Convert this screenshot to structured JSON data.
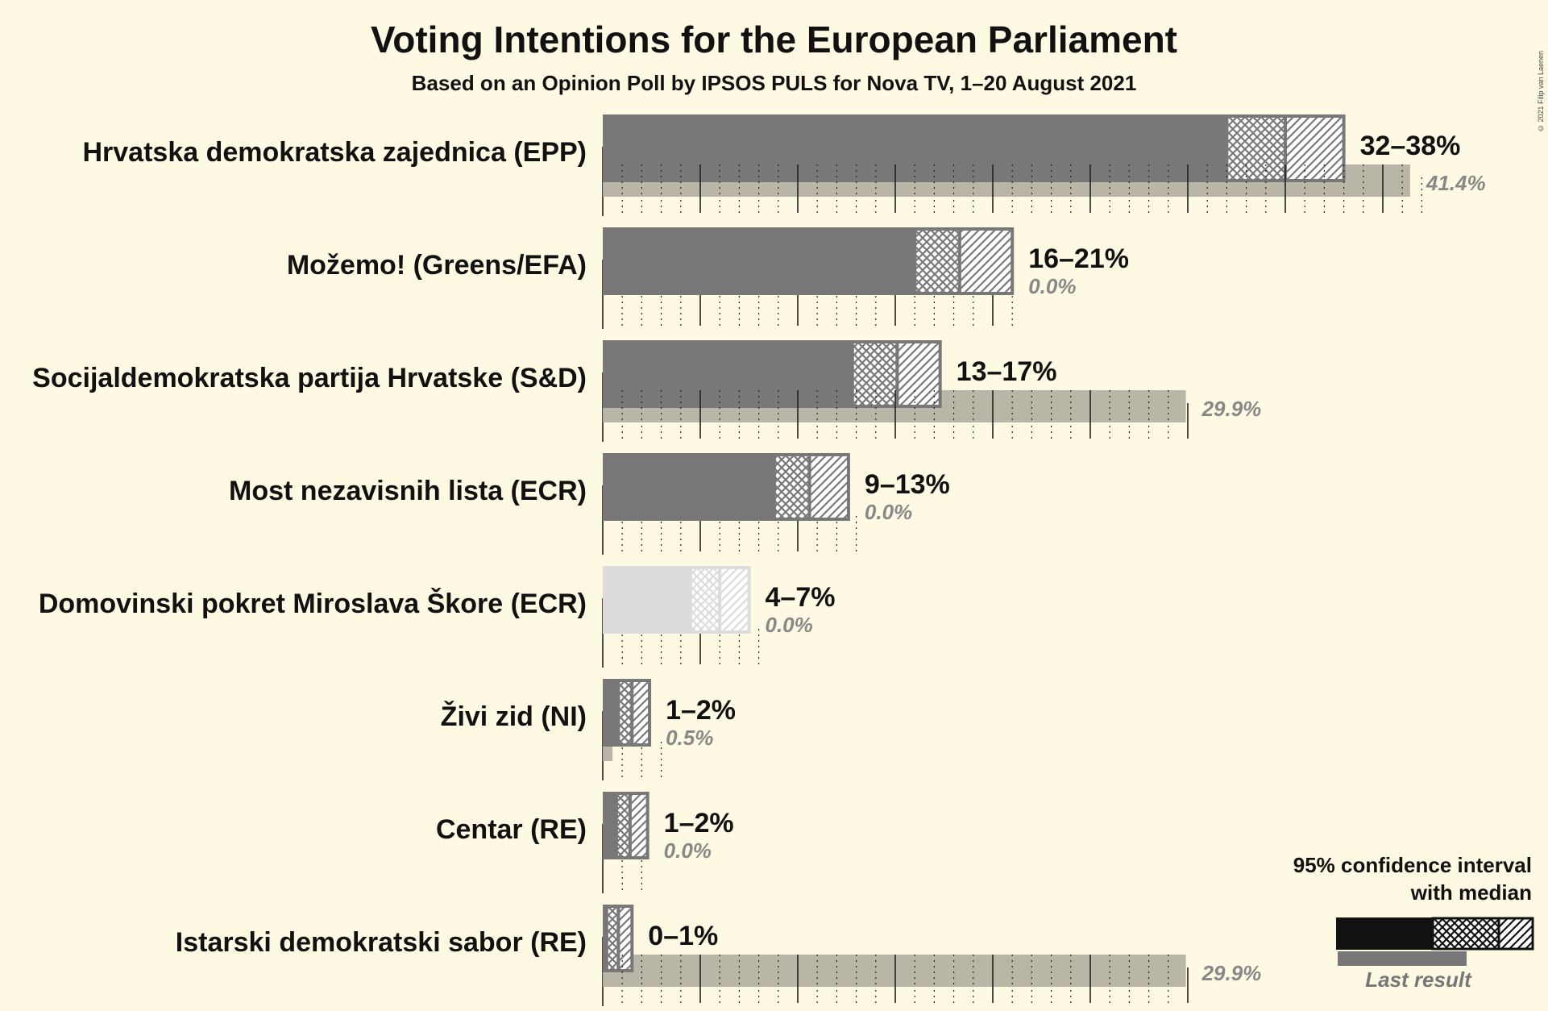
{
  "header": {
    "title": "Voting Intentions for the European Parliament",
    "subtitle": "Based on an Opinion Poll by IPSOS PULS for Nova TV, 1–20 August 2021",
    "copyright": "© 2021 Filip van Laenen"
  },
  "legend": {
    "title_line1": "95% confidence interval",
    "title_line2": "with median",
    "last_result_label": "Last result"
  },
  "colors": {
    "background": "#fdf9e2",
    "bar": "#787878",
    "bar_faded": "#dcdcdc",
    "last_result": "#b5b2a4",
    "label_gray": "#888888"
  },
  "chart_data": {
    "type": "bar",
    "orientation": "horizontal",
    "title": "Voting Intentions for the European Parliament",
    "subtitle": "Based on an Opinion Poll by IPSOS PULS for Nova TV, 1–20 August 2021",
    "xlim": [
      0,
      45
    ],
    "grid": true,
    "legend_position": "bottom-right",
    "series": [
      {
        "name": "95% confidence interval with median"
      },
      {
        "name": "Last result"
      }
    ],
    "parties": [
      {
        "name": "Hrvatska demokratska zajednica (EPP)",
        "low": 32,
        "median": 35,
        "high": 38,
        "range_label": "32–38%",
        "last": 41.4,
        "last_label": "41.4%",
        "faded": false
      },
      {
        "name": "Možemo! (Greens/EFA)",
        "low": 16,
        "median": 18.3,
        "high": 21,
        "range_label": "16–21%",
        "last": 0.0,
        "last_label": "0.0%",
        "faded": false
      },
      {
        "name": "Socijaldemokratska partija Hrvatske (S&D)",
        "low": 12.8,
        "median": 15.1,
        "high": 17.3,
        "range_label": "13–17%",
        "last": 29.9,
        "last_label": "29.9%",
        "faded": false
      },
      {
        "name": "Most nezavisnih lista (ECR)",
        "low": 8.8,
        "median": 10.6,
        "high": 12.6,
        "range_label": "9–13%",
        "last": 0.0,
        "last_label": "0.0%",
        "faded": false
      },
      {
        "name": "Domovinski pokret Miroslava Škore (ECR)",
        "low": 4.5,
        "median": 6.0,
        "high": 7.5,
        "range_label": "4–7%",
        "last": 0.0,
        "last_label": "0.0%",
        "faded": true
      },
      {
        "name": "Živi zid (NI)",
        "low": 0.8,
        "median": 1.5,
        "high": 2.4,
        "range_label": "1–2%",
        "last": 0.5,
        "last_label": "0.5%",
        "faded": false
      },
      {
        "name": "Centar (RE)",
        "low": 0.7,
        "median": 1.4,
        "high": 2.3,
        "range_label": "1–2%",
        "last": 0.0,
        "last_label": "0.0%",
        "faded": false
      },
      {
        "name": "Istarski demokratski sabor (RE)",
        "low": 0.2,
        "median": 0.8,
        "high": 1.5,
        "range_label": "0–1%",
        "last": 29.9,
        "last_label": "29.9%",
        "faded": false
      }
    ]
  }
}
